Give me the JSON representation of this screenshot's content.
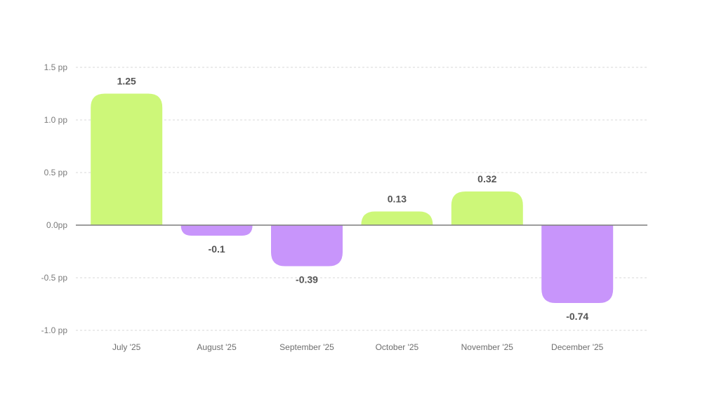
{
  "chart_data": {
    "type": "bar",
    "categories": [
      "July '25",
      "August '25",
      "September '25",
      "October '25",
      "November '25",
      "December '25"
    ],
    "values": [
      1.25,
      -0.1,
      -0.39,
      0.13,
      0.32,
      -0.74
    ],
    "value_labels": [
      "1.25",
      "-0.1",
      "-0.39",
      "0.13",
      "0.32",
      "-0.74"
    ],
    "title": "",
    "xlabel": "",
    "ylabel": "",
    "ylim": [
      -1.0,
      1.5
    ],
    "y_ticks": [
      {
        "value": 1.5,
        "label": "1.5 pp"
      },
      {
        "value": 1.0,
        "label": "1.0 pp"
      },
      {
        "value": 0.5,
        "label": "0.5 pp"
      },
      {
        "value": 0.0,
        "label": "0.0pp"
      },
      {
        "value": -0.5,
        "label": "-0.5 pp"
      },
      {
        "value": -1.0,
        "label": "-1.0 pp"
      }
    ],
    "grid": true,
    "legend": "none",
    "colors": {
      "positive": "#cdf779",
      "negative": "#c895fb",
      "grid": "#d9d9d9",
      "zero_line": "#7d7d7d",
      "value_text": "#555555",
      "axis_text": "#7a7a7a"
    }
  }
}
